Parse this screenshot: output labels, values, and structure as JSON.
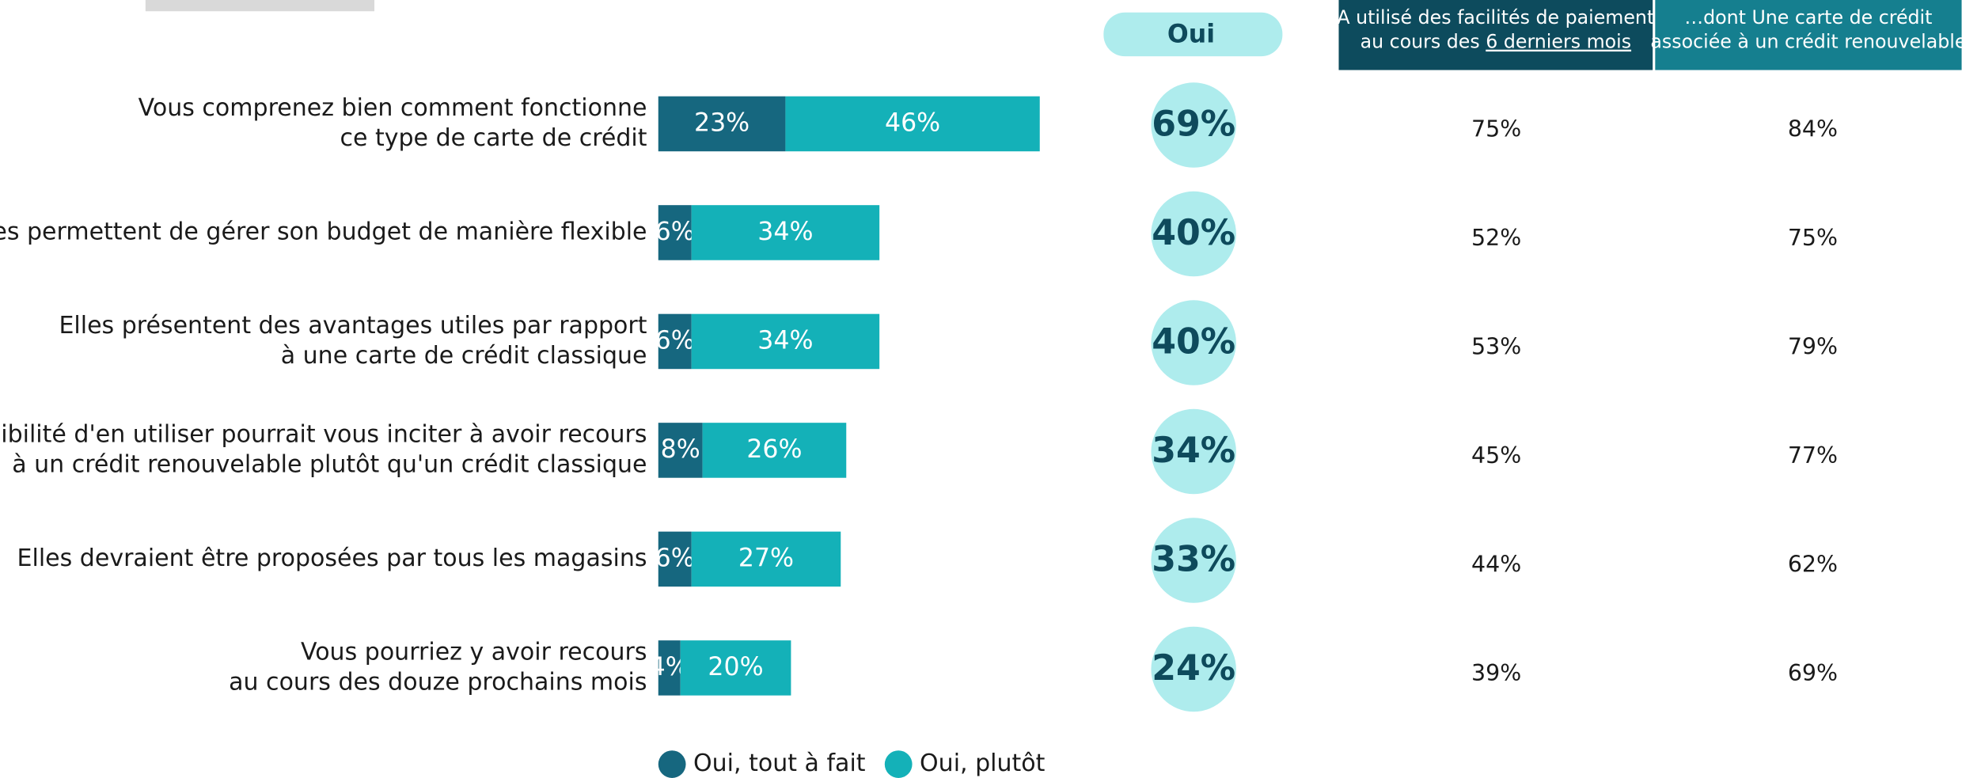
{
  "chart_data": {
    "type": "bar",
    "orientation": "horizontal",
    "stacked": true,
    "categories": [
      [
        "Vous comprenez bien comment fonctionne",
        "ce type de carte de crédit"
      ],
      [
        "Elles permettent de gérer son budget de manière flexible"
      ],
      [
        "Elles présentent des avantages utiles par rapport",
        "à une carte de crédit classique"
      ],
      [
        "La possibilité d'en utiliser pourrait vous inciter à avoir recours",
        "à un crédit renouvelable plutôt qu'un crédit classique"
      ],
      [
        "Elles devraient être proposées par tous les magasins"
      ],
      [
        "Vous pourriez y avoir recours",
        "au cours des douze prochains mois"
      ]
    ],
    "series": [
      {
        "name": "Oui, tout à fait",
        "color": "#16677f",
        "values": [
          23,
          6,
          6,
          8,
          6,
          4
        ],
        "value_labels": [
          "23%",
          "6%",
          "6%",
          "8%",
          "6%",
          "4%"
        ]
      },
      {
        "name": "Oui, plutôt",
        "color": "#14b1b8",
        "values": [
          46,
          34,
          34,
          26,
          27,
          20
        ],
        "value_labels": [
          "46%",
          "34%",
          "34%",
          "26%",
          "27%",
          "20%"
        ]
      }
    ],
    "total": {
      "name": "Oui",
      "color": "#aeeced",
      "values": [
        69,
        40,
        40,
        34,
        33,
        24
      ],
      "value_labels": [
        "69%",
        "40%",
        "40%",
        "34%",
        "33%",
        "24%"
      ]
    },
    "columns": [
      {
        "header": [
          "A utilisé des facilités de paiement",
          "au cours des ",
          "6 derniers mois"
        ],
        "color": "#0d4b5d",
        "values": [
          75,
          52,
          53,
          45,
          44,
          39
        ],
        "value_labels": [
          "75%",
          "52%",
          "53%",
          "45%",
          "44%",
          "39%"
        ]
      },
      {
        "header": [
          "…dont Une carte de crédit",
          "associée à un crédit renouvelable"
        ],
        "color": "#157f8f",
        "values": [
          84,
          75,
          79,
          77,
          62,
          69
        ],
        "value_labels": [
          "84%",
          "75%",
          "79%",
          "77%",
          "62%",
          "69%"
        ]
      }
    ]
  }
}
